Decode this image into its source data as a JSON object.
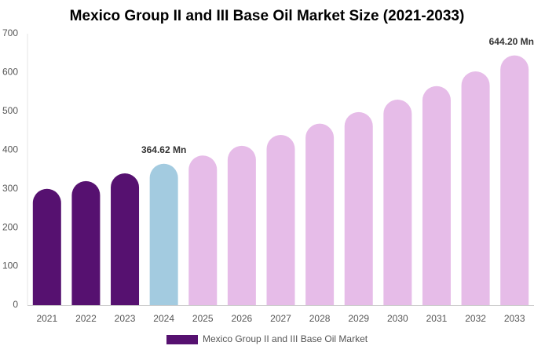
{
  "chart_data": {
    "type": "bar",
    "title": "Mexico Group II and III Base Oil Market Size (2021-2033)",
    "categories": [
      "2021",
      "2022",
      "2023",
      "2024",
      "2025",
      "2026",
      "2027",
      "2028",
      "2029",
      "2030",
      "2031",
      "2032",
      "2033"
    ],
    "series": [
      {
        "name": "Mexico Group II and III Base Oil Market",
        "color": "#561170",
        "colors": [
          "#561170",
          "#561170",
          "#561170",
          "#a3cbe0",
          "#e6bce8",
          "#e6bce8",
          "#e6bce8",
          "#e6bce8",
          "#e6bce8",
          "#e6bce8",
          "#e6bce8",
          "#e6bce8",
          "#e6bce8"
        ],
        "values": [
          300,
          320,
          340,
          364.62,
          386,
          411,
          439,
          468,
          498,
          530,
          565,
          603,
          644.2
        ],
        "value_labels": [
          null,
          null,
          null,
          "364.62 Mn",
          null,
          null,
          null,
          null,
          null,
          null,
          null,
          null,
          "644.20 Mn"
        ]
      }
    ],
    "ylim": [
      0,
      700
    ],
    "yticks": [
      0,
      100,
      200,
      300,
      400,
      500,
      600,
      700
    ],
    "grid": false
  }
}
